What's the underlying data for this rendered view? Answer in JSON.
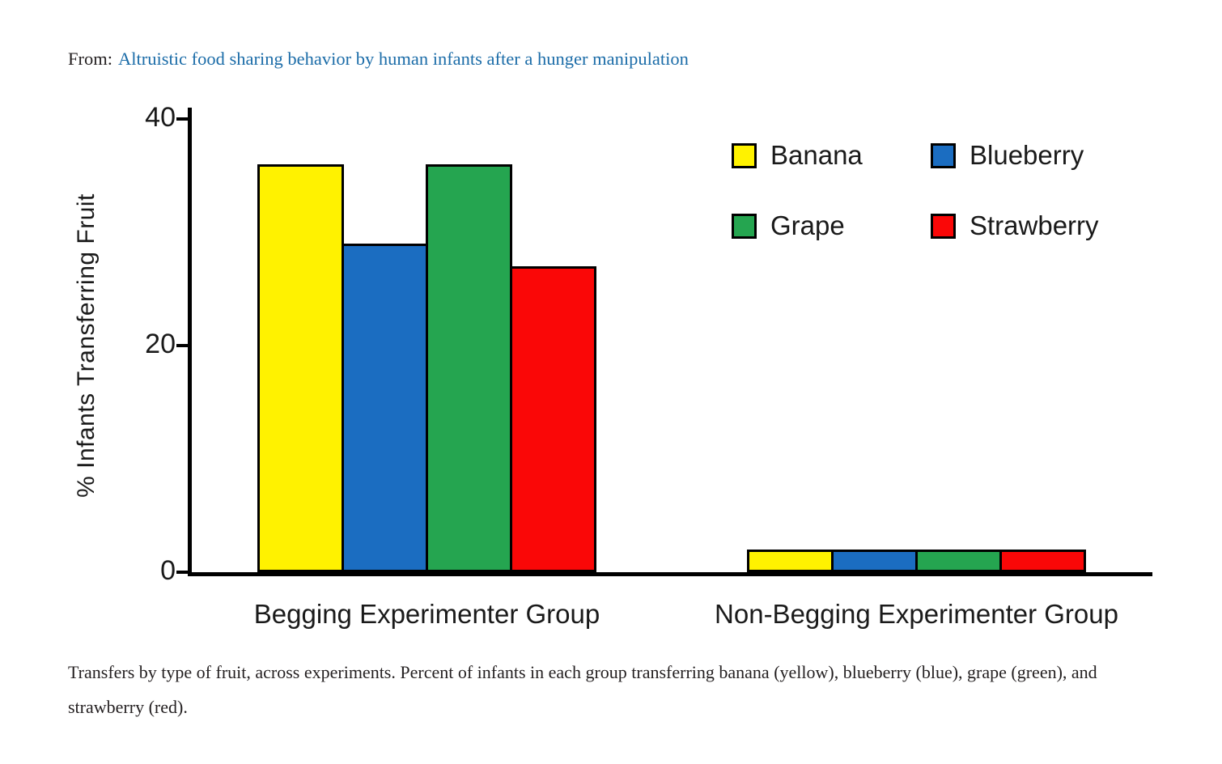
{
  "page": {
    "from_label": "From:",
    "article_title": "Altruistic food sharing behavior by human infants after a hunger manipulation",
    "caption": "Transfers by type of fruit, across experiments. Percent of infants in each group transferring banana (yellow), blueberry (blue), grape (green), and strawberry (red).",
    "link_color": "#1b6ca8"
  },
  "chart_data": {
    "type": "bar",
    "title": "",
    "xlabel": "",
    "ylabel": "% Infants Transferring Fruit",
    "ylim": [
      0,
      40
    ],
    "yticks": [
      0,
      20,
      40
    ],
    "grid": false,
    "legend_position": "top-right",
    "categories": [
      "Begging Experimenter Group",
      "Non-Begging Experimenter Group"
    ],
    "series": [
      {
        "name": "Banana",
        "color": "#fff200",
        "values": [
          36,
          2
        ]
      },
      {
        "name": "Blueberry",
        "color": "#1b6dc1",
        "values": [
          29,
          2
        ]
      },
      {
        "name": "Grape",
        "color": "#25a550",
        "values": [
          36,
          2
        ]
      },
      {
        "name": "Strawberry",
        "color": "#fa0707",
        "values": [
          27,
          2
        ]
      }
    ]
  }
}
